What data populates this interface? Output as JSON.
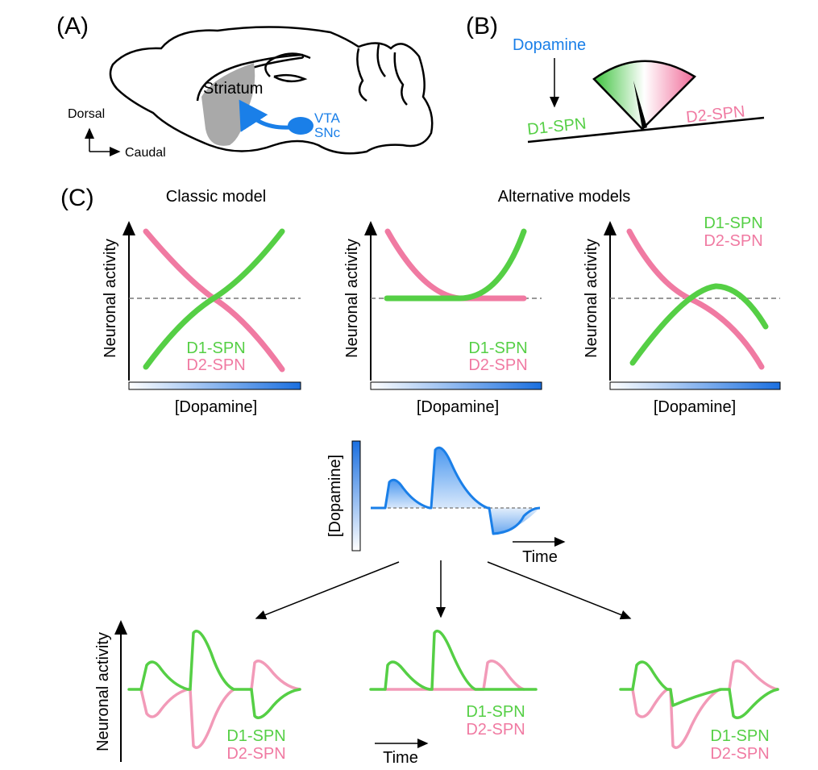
{
  "panel_a": {
    "label": "(A)",
    "region": "Striatum",
    "source_line1": "VTA",
    "source_line2": "SNc",
    "axis_up": "Dorsal",
    "axis_right": "Caudal"
  },
  "panel_b": {
    "label": "(B)",
    "input": "Dopamine",
    "left": "D1-SPN",
    "right": "D2-SPN"
  },
  "panel_c": {
    "label": "(C)",
    "classic_title": "Classic model",
    "alt_title": "Alternative models",
    "ylabel": "Neuronal activity",
    "xlabel": "[Dopamine]",
    "d1": "D1-SPN",
    "d2": "D2-SPN",
    "dopamine_trace_ylabel": "[Dopamine]",
    "time_label": "Time"
  },
  "colors": {
    "d1": "#55cf45",
    "d2": "#f07aa2",
    "dopamine": "#1a7fe8"
  }
}
